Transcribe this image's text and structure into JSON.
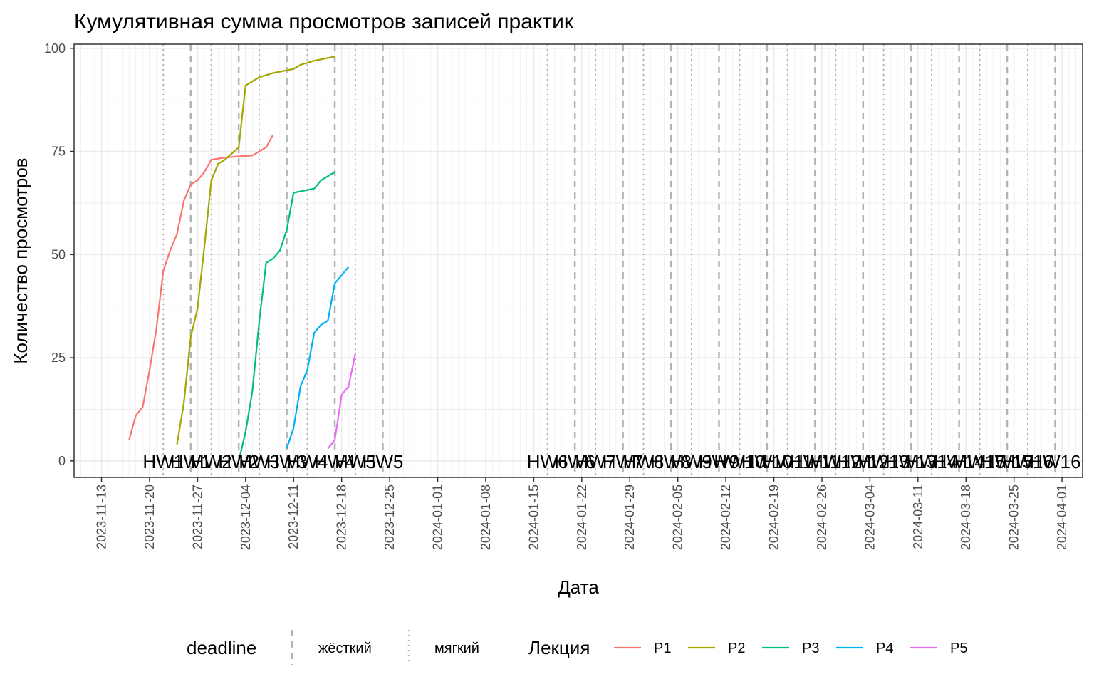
{
  "chart_data": {
    "type": "line",
    "title": "Кумулятивная сумма просмотров записей практик",
    "xlabel": "Дата",
    "ylabel": "Количество просмотров",
    "x_type": "date",
    "xlim": [
      "2023-11-09",
      "2024-04-04"
    ],
    "ylim": [
      -4,
      101
    ],
    "x_ticks": [
      "2023-11-13",
      "2023-11-20",
      "2023-11-27",
      "2023-12-04",
      "2023-12-11",
      "2023-12-18",
      "2023-12-25",
      "2024-01-01",
      "2024-01-08",
      "2024-01-15",
      "2024-01-22",
      "2024-01-29",
      "2024-02-05",
      "2024-02-12",
      "2024-02-19",
      "2024-02-26",
      "2024-03-04",
      "2024-03-11",
      "2024-03-18",
      "2024-03-25",
      "2024-04-01"
    ],
    "y_ticks": [
      0,
      25,
      50,
      75,
      100
    ],
    "grid": true,
    "series": [
      {
        "name": "P1",
        "color": "#F8766D",
        "points": [
          [
            "2023-11-17",
            5
          ],
          [
            "2023-11-18",
            11
          ],
          [
            "2023-11-19",
            13
          ],
          [
            "2023-11-20",
            22
          ],
          [
            "2023-11-21",
            32
          ],
          [
            "2023-11-22",
            46
          ],
          [
            "2023-11-23",
            51
          ],
          [
            "2023-11-24",
            55
          ],
          [
            "2023-11-25",
            63
          ],
          [
            "2023-11-26",
            67
          ],
          [
            "2023-11-27",
            68
          ],
          [
            "2023-11-28",
            70
          ],
          [
            "2023-11-29",
            73
          ],
          [
            "2023-12-01",
            73.5
          ],
          [
            "2023-12-03",
            73.8
          ],
          [
            "2023-12-05",
            74
          ],
          [
            "2023-12-07",
            76
          ],
          [
            "2023-12-08",
            79
          ]
        ]
      },
      {
        "name": "P2",
        "color": "#A3A500",
        "points": [
          [
            "2023-11-24",
            4
          ],
          [
            "2023-11-25",
            14
          ],
          [
            "2023-11-26",
            30
          ],
          [
            "2023-11-27",
            37
          ],
          [
            "2023-11-28",
            52
          ],
          [
            "2023-11-29",
            68
          ],
          [
            "2023-11-30",
            72
          ],
          [
            "2023-12-01",
            73
          ],
          [
            "2023-12-02",
            74.5
          ],
          [
            "2023-12-03",
            76
          ],
          [
            "2023-12-04",
            91
          ],
          [
            "2023-12-05",
            92
          ],
          [
            "2023-12-06",
            93
          ],
          [
            "2023-12-08",
            94
          ],
          [
            "2023-12-11",
            95
          ],
          [
            "2023-12-12",
            96
          ],
          [
            "2023-12-14",
            97
          ],
          [
            "2023-12-17",
            98
          ]
        ]
      },
      {
        "name": "P3",
        "color": "#00BF7D",
        "points": [
          [
            "2023-12-03",
            0
          ],
          [
            "2023-12-04",
            7
          ],
          [
            "2023-12-05",
            17
          ],
          [
            "2023-12-06",
            34
          ],
          [
            "2023-12-07",
            48
          ],
          [
            "2023-12-08",
            49
          ],
          [
            "2023-12-09",
            51
          ],
          [
            "2023-12-10",
            56
          ],
          [
            "2023-12-11",
            65
          ],
          [
            "2023-12-14",
            66
          ],
          [
            "2023-12-15",
            68
          ],
          [
            "2023-12-17",
            70
          ]
        ]
      },
      {
        "name": "P4",
        "color": "#00B0F6",
        "points": [
          [
            "2023-12-10",
            3
          ],
          [
            "2023-12-11",
            8
          ],
          [
            "2023-12-12",
            18
          ],
          [
            "2023-12-13",
            22
          ],
          [
            "2023-12-14",
            31
          ],
          [
            "2023-12-15",
            33
          ],
          [
            "2023-12-16",
            34
          ],
          [
            "2023-12-17",
            43
          ],
          [
            "2023-12-18",
            45
          ],
          [
            "2023-12-19",
            47
          ]
        ]
      },
      {
        "name": "P5",
        "color": "#E76BF3",
        "points": [
          [
            "2023-12-16",
            3
          ],
          [
            "2023-12-17",
            5
          ],
          [
            "2023-12-18",
            16
          ],
          [
            "2023-12-19",
            18
          ],
          [
            "2023-12-20",
            26
          ]
        ]
      }
    ],
    "deadlines": [
      {
        "label": "HW1",
        "date": "2023-11-22",
        "type": "мягкий"
      },
      {
        "label": "HW1",
        "date": "2023-11-26",
        "type": "жёсткий"
      },
      {
        "label": "HW2",
        "date": "2023-11-29",
        "type": "мягкий"
      },
      {
        "label": "HW2",
        "date": "2023-12-03",
        "type": "жёсткий"
      },
      {
        "label": "HW3",
        "date": "2023-12-06",
        "type": "мягкий"
      },
      {
        "label": "HW3",
        "date": "2023-12-10",
        "type": "жёсткий"
      },
      {
        "label": "HW4",
        "date": "2023-12-13",
        "type": "мягкий"
      },
      {
        "label": "HW4",
        "date": "2023-12-17",
        "type": "жёсткий"
      },
      {
        "label": "HW5",
        "date": "2023-12-20",
        "type": "мягкий"
      },
      {
        "label": "HW5",
        "date": "2023-12-24",
        "type": "жёсткий"
      },
      {
        "label": "HW6",
        "date": "2024-01-17",
        "type": "мягкий"
      },
      {
        "label": "HW6",
        "date": "2024-01-21",
        "type": "жёсткий"
      },
      {
        "label": "HW7",
        "date": "2024-01-24",
        "type": "мягкий"
      },
      {
        "label": "HW7",
        "date": "2024-01-28",
        "type": "жёсткий"
      },
      {
        "label": "HW8",
        "date": "2024-01-31",
        "type": "мягкий"
      },
      {
        "label": "HW8",
        "date": "2024-02-04",
        "type": "жёсткий"
      },
      {
        "label": "HW9",
        "date": "2024-02-07",
        "type": "мягкий"
      },
      {
        "label": "HW9",
        "date": "2024-02-11",
        "type": "жёсткий"
      },
      {
        "label": "HW10",
        "date": "2024-02-14",
        "type": "мягкий"
      },
      {
        "label": "HW10",
        "date": "2024-02-18",
        "type": "жёсткий"
      },
      {
        "label": "HW11",
        "date": "2024-02-21",
        "type": "мягкий"
      },
      {
        "label": "HW11",
        "date": "2024-02-25",
        "type": "жёсткий"
      },
      {
        "label": "HW12",
        "date": "2024-02-28",
        "type": "мягкий"
      },
      {
        "label": "HW12",
        "date": "2024-03-03",
        "type": "жёсткий"
      },
      {
        "label": "HW13",
        "date": "2024-03-06",
        "type": "мягкий"
      },
      {
        "label": "HW13",
        "date": "2024-03-10",
        "type": "жёсткий"
      },
      {
        "label": "HW14",
        "date": "2024-03-13",
        "type": "мягкий"
      },
      {
        "label": "HW14",
        "date": "2024-03-17",
        "type": "жёсткий"
      },
      {
        "label": "HW15",
        "date": "2024-03-20",
        "type": "мягкий"
      },
      {
        "label": "HW15",
        "date": "2024-03-24",
        "type": "жёсткий"
      },
      {
        "label": "HW16",
        "date": "2024-03-27",
        "type": "мягкий"
      },
      {
        "label": "HW16",
        "date": "2024-03-31",
        "type": "жёсткий"
      }
    ],
    "legend": {
      "position": "bottom",
      "deadline_title": "deadline",
      "deadline_items": [
        {
          "label": "жёсткий",
          "style": "dashed"
        },
        {
          "label": "мягкий",
          "style": "dotted"
        }
      ],
      "series_title": "Лекция"
    }
  }
}
